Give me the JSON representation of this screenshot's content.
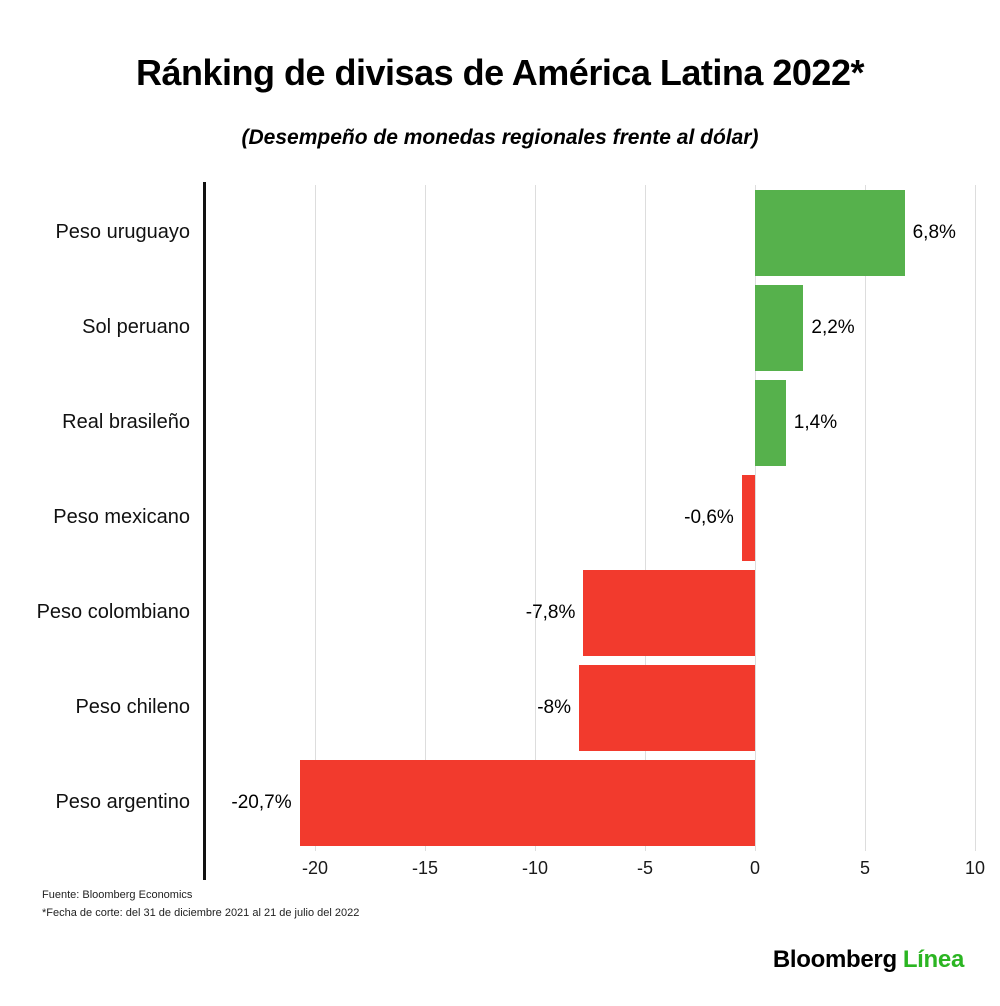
{
  "title": "Ránking de divisas de América Latina 2022*",
  "subtitle": "(Desempeño de monedas regionales frente al dólar)",
  "chart_data": {
    "type": "bar",
    "orientation": "horizontal",
    "categories": [
      "Peso uruguayo",
      "Sol peruano",
      "Real brasileño",
      "Peso mexicano",
      "Peso colombiano",
      "Peso chileno",
      "Peso argentino"
    ],
    "values": [
      6.8,
      2.2,
      1.4,
      -0.6,
      -7.8,
      -8,
      -20.7
    ],
    "value_labels": [
      "6,8%",
      "2,2%",
      "1,4%",
      "-0,6%",
      "-7,8%",
      "-8%",
      "-20,7%"
    ],
    "x_ticks": [
      -20,
      -15,
      -10,
      -5,
      0,
      5,
      10
    ],
    "x_tick_labels": [
      "-20",
      "-15",
      "-10",
      "-5",
      "0",
      "5",
      "10"
    ],
    "xlim": [
      -25,
      10
    ],
    "grid": true,
    "positive_color": "#56b14c",
    "negative_color": "#f23a2d",
    "title": "Ránking de divisas de América Latina 2022*",
    "xlabel": "",
    "ylabel": ""
  },
  "footer": {
    "source": "Fuente: Bloomberg Economics",
    "note": "*Fecha de corte: del 31 de diciembre 2021 al 21 de julio del 2022"
  },
  "brand": {
    "name": "Bloomberg",
    "suffix": "Línea",
    "suffix_color": "#2bb522"
  }
}
